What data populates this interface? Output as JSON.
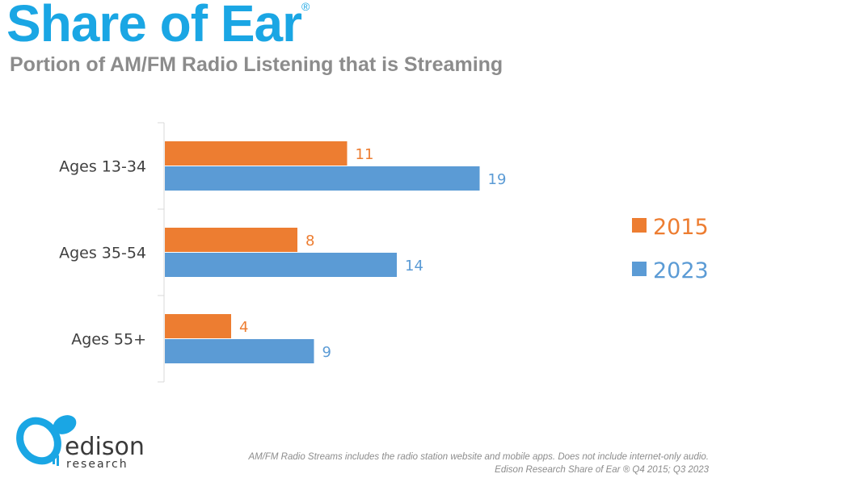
{
  "header": {
    "title": "Share of Ear",
    "title_mark": "®",
    "subtitle": "Portion of AM/FM Radio Listening that is Streaming"
  },
  "chart_data": {
    "type": "bar",
    "orientation": "horizontal",
    "categories": [
      "Ages 13-34",
      "Ages 35-54",
      "Ages 55+"
    ],
    "series": [
      {
        "name": "2015",
        "values": [
          11,
          8,
          4
        ],
        "color": "#ed7d31"
      },
      {
        "name": "2023",
        "values": [
          19,
          14,
          9
        ],
        "color": "#5b9bd5"
      }
    ],
    "xlim": [
      0,
      25
    ],
    "legend_position": "right",
    "grid": false
  },
  "footnote": {
    "line1": "AM/FM Radio Streams includes the radio station website and mobile apps. Does not include internet-only audio.",
    "line2": "Edison Research Share of Ear ® Q4 2015; Q3 2023"
  },
  "logo": {
    "name": "edison",
    "tagline": "research",
    "color": "#1aa6e4"
  }
}
